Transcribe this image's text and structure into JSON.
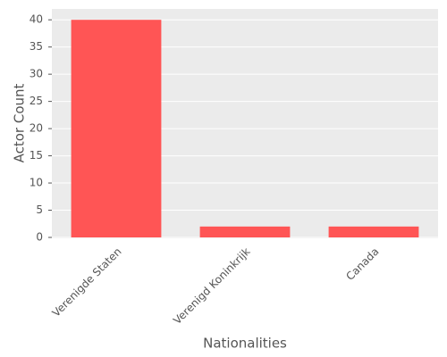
{
  "chart_data": {
    "type": "bar",
    "x_label": "Nationalities",
    "y_label": "Actor Count",
    "categories": [
      "Verenigde Staten",
      "Verenigd Koninkrijk",
      "Canada"
    ],
    "values": [
      40,
      2,
      2
    ],
    "color": "#ff5555",
    "ylim": [
      0,
      42
    ],
    "yticks": [
      0,
      5,
      10,
      15,
      20,
      25,
      30,
      35,
      40
    ],
    "grid": true
  }
}
